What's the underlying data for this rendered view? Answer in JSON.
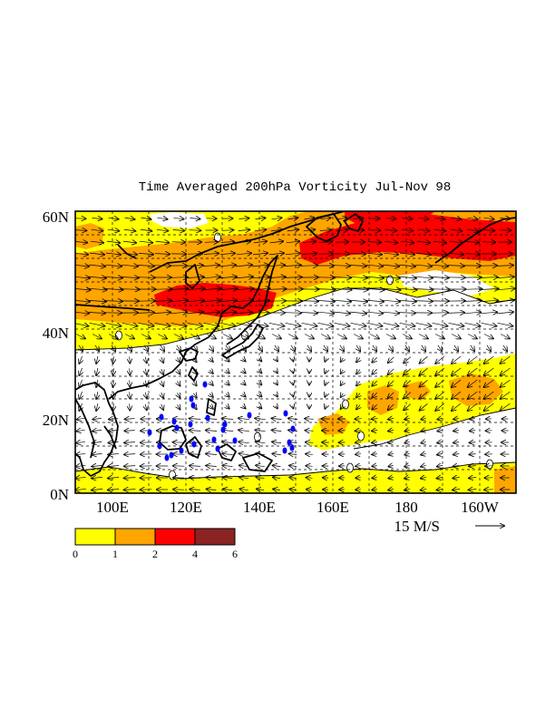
{
  "title": "Time Averaged 200hPa Vorticity Jul-Nov 98",
  "lat_labels": [
    "60N",
    "40N",
    "20N",
    "0N"
  ],
  "lon_labels": [
    "100E",
    "120E",
    "140E",
    "160E",
    "180",
    "160W"
  ],
  "vector_reference": {
    "label": "15 M/S",
    "speed": 15
  },
  "colorbar": {
    "ticks": [
      "0",
      "1",
      "2",
      "4",
      "6"
    ],
    "colors": [
      "#ffff00",
      "#ffa500",
      "#ff0000",
      "#8b2323"
    ]
  },
  "contour_label": "0",
  "domain": {
    "lon_range": [
      90,
      210
    ],
    "lat_range": [
      0,
      60
    ]
  }
}
